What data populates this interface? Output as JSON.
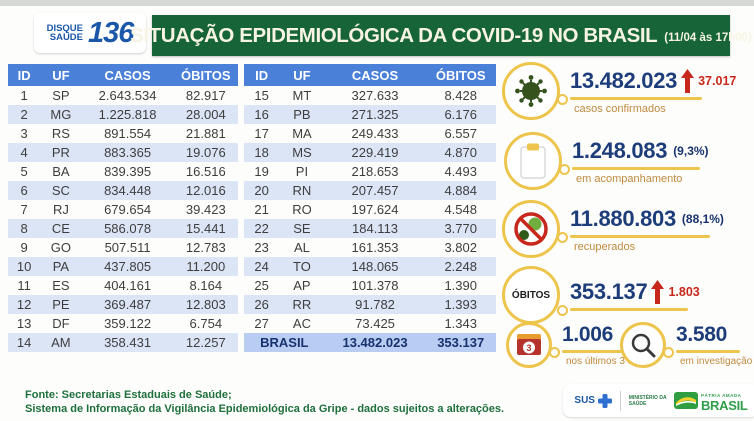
{
  "header": {
    "logo_line1": "DISQUE",
    "logo_line2": "SAÚDE",
    "logo_number": "136",
    "title": "SITUAÇÃO EPIDEMIOLÓGICA DA COVID-19 NO BRASIL",
    "title_suffix": "(11/04 às 17h00)"
  },
  "chart_data": {
    "type": "table",
    "title": "SITUAÇÃO EPIDEMIOLÓGICA DA COVID-19 NO BRASIL",
    "as_of": "11/04 às 17h00",
    "columns": [
      "ID",
      "UF",
      "CASOS",
      "ÓBITOS"
    ],
    "left_rows": [
      [
        "1",
        "SP",
        "2.643.534",
        "82.917"
      ],
      [
        "2",
        "MG",
        "1.225.818",
        "28.004"
      ],
      [
        "3",
        "RS",
        "891.554",
        "21.881"
      ],
      [
        "4",
        "PR",
        "883.365",
        "19.076"
      ],
      [
        "5",
        "BA",
        "839.395",
        "16.516"
      ],
      [
        "6",
        "SC",
        "834.448",
        "12.016"
      ],
      [
        "7",
        "RJ",
        "679.654",
        "39.423"
      ],
      [
        "8",
        "CE",
        "586.078",
        "15.441"
      ],
      [
        "9",
        "GO",
        "507.511",
        "12.783"
      ],
      [
        "10",
        "PA",
        "437.805",
        "11.200"
      ],
      [
        "11",
        "ES",
        "404.161",
        "8.164"
      ],
      [
        "12",
        "PE",
        "369.487",
        "12.803"
      ],
      [
        "13",
        "DF",
        "359.122",
        "6.754"
      ],
      [
        "14",
        "AM",
        "358.431",
        "12.257"
      ]
    ],
    "right_rows": [
      [
        "15",
        "MT",
        "327.633",
        "8.428"
      ],
      [
        "16",
        "PB",
        "271.325",
        "6.176"
      ],
      [
        "17",
        "MA",
        "249.433",
        "6.557"
      ],
      [
        "18",
        "MS",
        "229.419",
        "4.870"
      ],
      [
        "19",
        "PI",
        "218.653",
        "4.493"
      ],
      [
        "20",
        "RN",
        "207.457",
        "4.884"
      ],
      [
        "21",
        "RO",
        "197.624",
        "4.548"
      ],
      [
        "22",
        "SE",
        "184.113",
        "3.770"
      ],
      [
        "23",
        "AL",
        "161.353",
        "3.802"
      ],
      [
        "24",
        "TO",
        "148.065",
        "2.248"
      ],
      [
        "25",
        "AP",
        "101.378",
        "1.390"
      ],
      [
        "26",
        "RR",
        "91.782",
        "1.393"
      ],
      [
        "27",
        "AC",
        "73.425",
        "1.343"
      ]
    ],
    "total_row": [
      "BRASIL",
      "13.482.023",
      "353.137"
    ]
  },
  "stats": [
    {
      "icon": "virus-icon",
      "value": "13.482.023",
      "delta": "37.017",
      "label": "casos confirmados"
    },
    {
      "icon": "clipboard-icon",
      "value": "1.248.083",
      "pct": "(9,3%)",
      "label": "em acompanhamento"
    },
    {
      "icon": "no-virus-icon",
      "value": "11.880.803",
      "pct": "(88,1%)",
      "label": "recuperados"
    },
    {
      "icon": "obitos-badge",
      "badge_text": "ÓBITOS",
      "value": "353.137",
      "delta": "1.803"
    },
    {
      "icon": "calendar-3-icon",
      "value": "1.006",
      "label": "nos últimos 3 dias"
    },
    {
      "icon": "magnifier-icon",
      "value": "3.580",
      "label": "em investigação"
    }
  ],
  "footer": {
    "source_line1": "Fonte: Secretarias Estaduais de Saúde;",
    "source_line2": "Sistema de Informação da Vigilância Epidemiológica da Gripe - dados sujeitos a alterações.",
    "sus_label": "SUS",
    "ministry_line1": "MINISTÉRIO DA",
    "ministry_line2": "SAÚDE",
    "brand_top": "PÁTRIA AMADA",
    "brand_main": "BRASIL"
  },
  "colors": {
    "banner_green": "#166438",
    "table_header_blue": "#4a80d8",
    "row_alt_blue": "#dbe5f6",
    "total_row_blue": "#b9cdf2",
    "number_navy": "#1d3d7a",
    "accent_gold": "#edc44c",
    "alert_red": "#c8281c",
    "label_orange": "#bf8a3e",
    "footer_green": "#1d6f3c",
    "logo_blue": "#1a57a8"
  }
}
